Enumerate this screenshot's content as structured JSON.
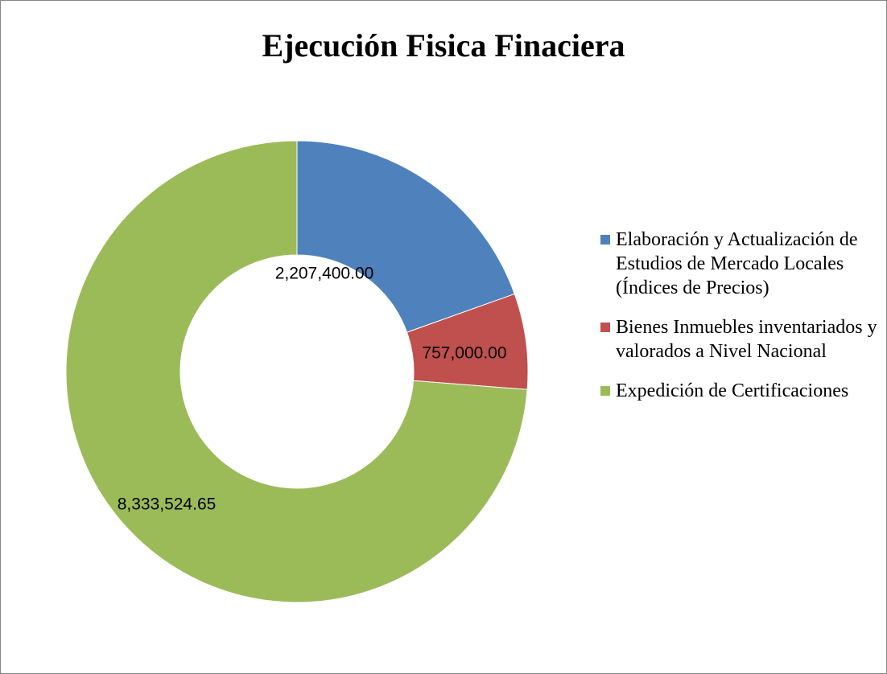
{
  "chart_data": {
    "type": "donut",
    "title": "Ejecución Fisica Finaciera",
    "categories": [
      "Elaboración y Actualización de Estudios de Mercado Locales (Índices de Precios)",
      "Bienes Inmuebles inventariados y valorados a Nivel Nacional",
      "Expedición de Certificaciones"
    ],
    "values": [
      2207400,
      757000,
      8333524.65
    ],
    "value_labels": [
      "2,207,400.00",
      "757,000.00",
      "8,333,524.65"
    ],
    "colors": [
      "#4f81bd",
      "#c0504d",
      "#9bbb59"
    ],
    "legend": "right"
  }
}
